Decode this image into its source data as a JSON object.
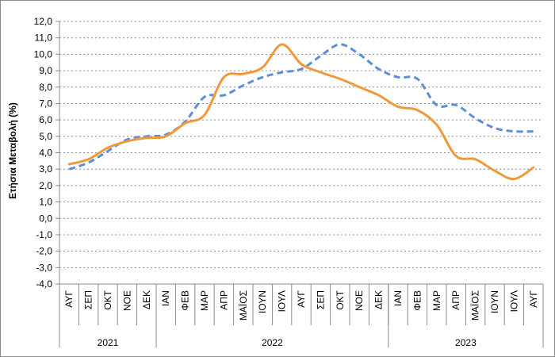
{
  "chart_data": {
    "type": "line",
    "ylabel": "Ετήσια Μεταβολή (%)",
    "ylim": [
      -4.0,
      12.0
    ],
    "ytick_step": 1.0,
    "yticks": [
      "12,0",
      "11,0",
      "10,0",
      "9,0",
      "8,0",
      "7,0",
      "6,0",
      "5,0",
      "4,0",
      "3,0",
      "2,0",
      "1,0",
      "0,0",
      "-1,0",
      "-2,0",
      "-3,0",
      "-4,0"
    ],
    "grid": "horizontal dashed",
    "months": [
      "ΑΥΓ",
      "ΣΕΠ",
      "ΟΚΤ",
      "ΝΟΕ",
      "ΔΕΚ",
      "ΙΑΝ",
      "ΦΕΒ",
      "ΜΑΡ",
      "ΑΠΡ",
      "ΜΑΪΟΣ",
      "ΙΟΥΝ",
      "ΙΟΥΛ",
      "ΑΥΓ",
      "ΣΕΠ",
      "ΟΚΤ",
      "ΝΟΕ",
      "ΔΕΚ",
      "ΙΑΝ",
      "ΦΕΒ",
      "ΜΑΡ",
      "ΑΠΡ",
      "ΜΑΪΟΣ",
      "ΙΟΥΝ",
      "ΙΟΥΛ",
      "ΑΥΓ"
    ],
    "years": [
      {
        "label": "2021",
        "start": 0,
        "end": 4
      },
      {
        "label": "2022",
        "start": 5,
        "end": 16
      },
      {
        "label": "2023",
        "start": 17,
        "end": 24
      }
    ],
    "series": [
      {
        "color": "#F0993A",
        "dash": "solid",
        "values": [
          3.3,
          3.6,
          4.3,
          4.7,
          4.9,
          5.0,
          5.8,
          6.3,
          8.6,
          8.8,
          9.2,
          10.6,
          9.4,
          8.9,
          8.5,
          8.0,
          7.5,
          6.8,
          6.6,
          5.7,
          3.8,
          3.6,
          2.9,
          2.4,
          3.1
        ]
      },
      {
        "color": "#5B8FD6",
        "dash": "dashed",
        "values": [
          3.0,
          3.4,
          4.1,
          4.8,
          5.0,
          5.1,
          5.9,
          7.4,
          7.5,
          8.1,
          8.6,
          8.9,
          9.1,
          9.9,
          10.6,
          10.0,
          9.1,
          8.6,
          8.5,
          6.9,
          6.9,
          6.1,
          5.5,
          5.3,
          5.3
        ]
      }
    ]
  }
}
